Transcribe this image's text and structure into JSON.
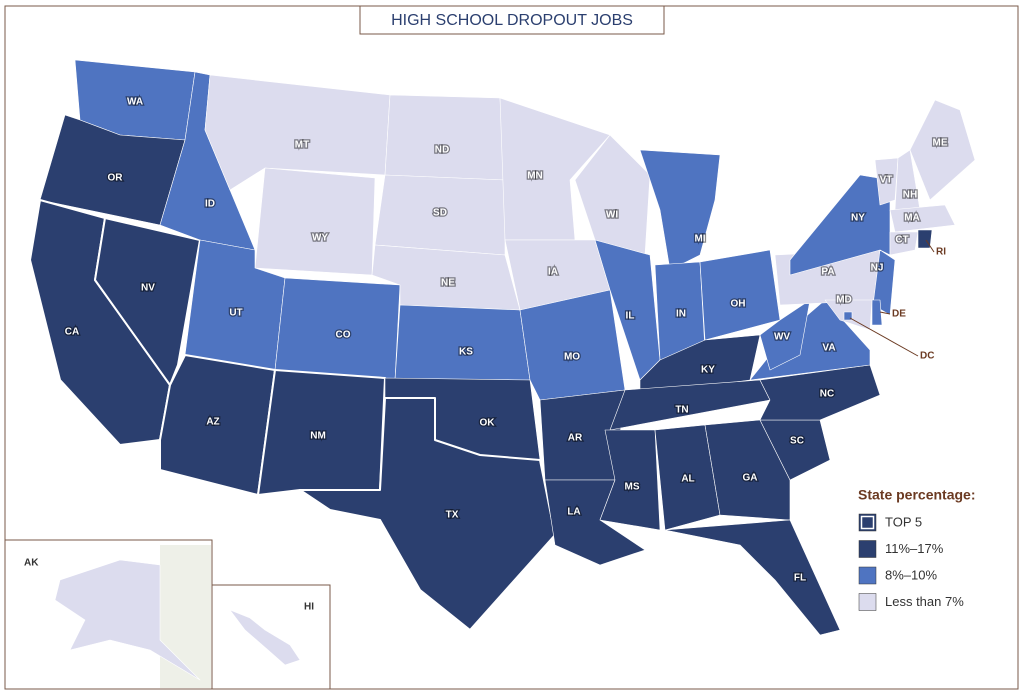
{
  "title": "HIGH SCHOOL DROPOUT JOBS",
  "legend": {
    "title": "State percentage:",
    "items": [
      {
        "label": "TOP 5",
        "color": "#2b3f6f",
        "outline": true
      },
      {
        "label": "11%–17%",
        "color": "#2b3f6f"
      },
      {
        "label": "8%–10%",
        "color": "#4f74c1"
      },
      {
        "label": "Less than 7%",
        "color": "#dcdcee"
      }
    ]
  },
  "states": [
    {
      "label": "WA",
      "color": "#4f74c1"
    },
    {
      "label": "OR",
      "color": "#2b3f6f"
    },
    {
      "label": "CA",
      "color": "#2b3f6f",
      "top5": true
    },
    {
      "label": "NV",
      "color": "#2b3f6f",
      "top5": true
    },
    {
      "label": "ID",
      "color": "#4f74c1"
    },
    {
      "label": "MT",
      "color": "#dcdcee"
    },
    {
      "label": "WY",
      "color": "#dcdcee"
    },
    {
      "label": "UT",
      "color": "#4f74c1"
    },
    {
      "label": "CO",
      "color": "#4f74c1"
    },
    {
      "label": "AZ",
      "color": "#2b3f6f",
      "top5": true
    },
    {
      "label": "NM",
      "color": "#2b3f6f",
      "top5": true
    },
    {
      "label": "ND",
      "color": "#dcdcee"
    },
    {
      "label": "SD",
      "color": "#dcdcee"
    },
    {
      "label": "NE",
      "color": "#dcdcee"
    },
    {
      "label": "KS",
      "color": "#4f74c1"
    },
    {
      "label": "OK",
      "color": "#2b3f6f"
    },
    {
      "label": "TX",
      "color": "#2b3f6f",
      "top5": true
    },
    {
      "label": "MN",
      "color": "#dcdcee"
    },
    {
      "label": "IA",
      "color": "#dcdcee"
    },
    {
      "label": "MO",
      "color": "#4f74c1"
    },
    {
      "label": "AR",
      "color": "#2b3f6f"
    },
    {
      "label": "LA",
      "color": "#2b3f6f"
    },
    {
      "label": "WI",
      "color": "#dcdcee"
    },
    {
      "label": "IL",
      "color": "#4f74c1"
    },
    {
      "label": "MI",
      "color": "#4f74c1"
    },
    {
      "label": "IN",
      "color": "#4f74c1"
    },
    {
      "label": "OH",
      "color": "#4f74c1"
    },
    {
      "label": "KY",
      "color": "#2b3f6f"
    },
    {
      "label": "TN",
      "color": "#2b3f6f"
    },
    {
      "label": "MS",
      "color": "#2b3f6f"
    },
    {
      "label": "AL",
      "color": "#2b3f6f"
    },
    {
      "label": "GA",
      "color": "#2b3f6f"
    },
    {
      "label": "FL",
      "color": "#2b3f6f"
    },
    {
      "label": "SC",
      "color": "#2b3f6f"
    },
    {
      "label": "NC",
      "color": "#2b3f6f"
    },
    {
      "label": "VA",
      "color": "#4f74c1"
    },
    {
      "label": "WV",
      "color": "#4f74c1"
    },
    {
      "label": "PA",
      "color": "#dcdcee"
    },
    {
      "label": "NY",
      "color": "#4f74c1"
    },
    {
      "label": "NJ",
      "color": "#4f74c1"
    },
    {
      "label": "DE",
      "color": "#4f74c1"
    },
    {
      "label": "MD",
      "color": "#dcdcee"
    },
    {
      "label": "DC",
      "color": "#4f74c1"
    },
    {
      "label": "VT",
      "color": "#dcdcee"
    },
    {
      "label": "NH",
      "color": "#dcdcee"
    },
    {
      "label": "ME",
      "color": "#dcdcee"
    },
    {
      "label": "MA",
      "color": "#dcdcee"
    },
    {
      "label": "CT",
      "color": "#dcdcee"
    },
    {
      "label": "RI",
      "color": "#2b3f6f"
    },
    {
      "label": "AK",
      "color": "#dcdcee"
    },
    {
      "label": "HI",
      "color": "#dcdcee"
    }
  ]
}
